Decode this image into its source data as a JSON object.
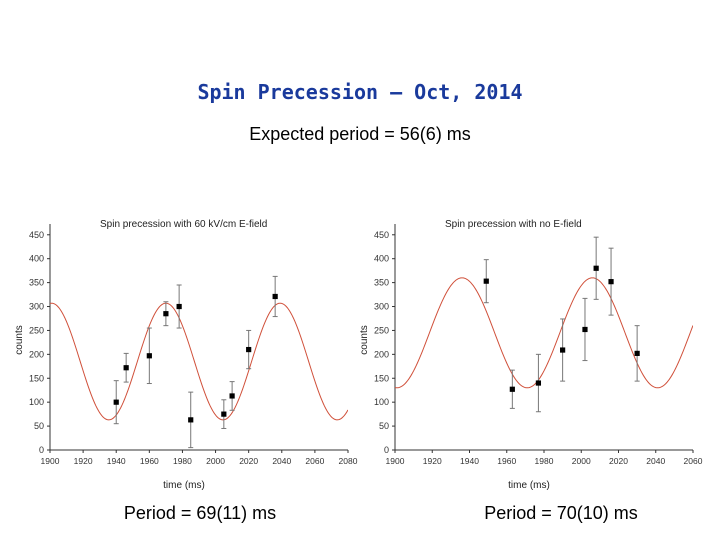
{
  "slide": {
    "title": "Spin Precession – Oct, 2014",
    "subtitle": "Expected period = 56(6) ms",
    "caption_left": "Period = 69(11) ms",
    "caption_right": "Period = 70(10) ms"
  },
  "colors": {
    "title": "#1a3a9c",
    "fit": "#d0503a",
    "axis": "#333333",
    "point": "#000000",
    "errorbar": "#777777"
  },
  "chart_data": [
    {
      "type": "scatter",
      "title": "Spin precession with 60 kV/cm E-field",
      "xlabel": "time (ms)",
      "ylabel": "counts",
      "xlim": [
        1900,
        2080
      ],
      "ylim": [
        0,
        460
      ],
      "xticks": [
        1900,
        1920,
        1940,
        1960,
        1980,
        2000,
        2020,
        2040,
        2060,
        2080
      ],
      "yticks": [
        0,
        50,
        100,
        150,
        200,
        250,
        300,
        350,
        400,
        450
      ],
      "points": [
        {
          "x": 1940,
          "y": 100,
          "err": 45
        },
        {
          "x": 1946,
          "y": 172,
          "err": 30
        },
        {
          "x": 1960,
          "y": 197,
          "err": 58
        },
        {
          "x": 1970,
          "y": 285,
          "err": 25
        },
        {
          "x": 1978,
          "y": 300,
          "err": 45
        },
        {
          "x": 1985,
          "y": 63,
          "err": 58
        },
        {
          "x": 2005,
          "y": 75,
          "err": 30
        },
        {
          "x": 2010,
          "y": 113,
          "err": 30
        },
        {
          "x": 2020,
          "y": 210,
          "err": 40
        },
        {
          "x": 2036,
          "y": 321,
          "err": 42
        }
      ],
      "fit": {
        "offset": 185,
        "amplitude": 122,
        "period": 69,
        "peak_x": 1970
      }
    },
    {
      "type": "scatter",
      "title": "Spin precession with no E-field",
      "xlabel": "time (ms)",
      "ylabel": "counts",
      "xlim": [
        1900,
        2060
      ],
      "ylim": [
        0,
        460
      ],
      "xticks": [
        1900,
        1920,
        1940,
        1960,
        1980,
        2000,
        2020,
        2040,
        2060
      ],
      "yticks": [
        0,
        50,
        100,
        150,
        200,
        250,
        300,
        350,
        400,
        450
      ],
      "points": [
        {
          "x": 1949,
          "y": 353,
          "err": 45
        },
        {
          "x": 1963,
          "y": 127,
          "err": 40
        },
        {
          "x": 1977,
          "y": 140,
          "err": 60
        },
        {
          "x": 1990,
          "y": 209,
          "err": 65
        },
        {
          "x": 2002,
          "y": 252,
          "err": 65
        },
        {
          "x": 2008,
          "y": 380,
          "err": 65
        },
        {
          "x": 2016,
          "y": 352,
          "err": 70
        },
        {
          "x": 2030,
          "y": 202,
          "err": 58
        }
      ],
      "fit": {
        "offset": 245,
        "amplitude": 115,
        "period": 70,
        "peak_x": 1936
      }
    }
  ]
}
